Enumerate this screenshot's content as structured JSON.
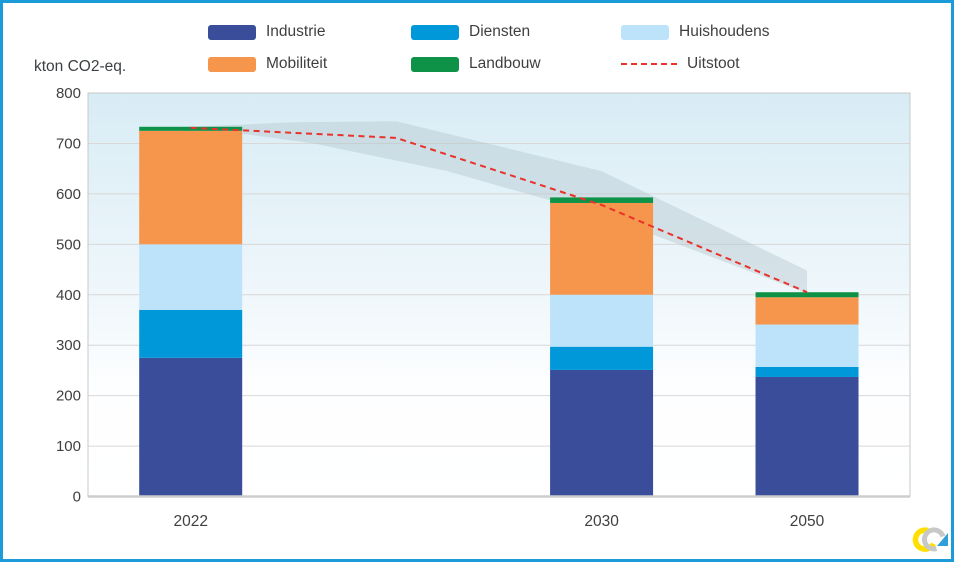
{
  "window": {
    "border_color": "#1B9CD8"
  },
  "axis_title": "kton CO2-eq.",
  "legend": {
    "items": [
      {
        "label": "Industrie",
        "color": "#394D9B",
        "type": "swatch"
      },
      {
        "label": "Diensten",
        "color": "#0098D8",
        "type": "swatch"
      },
      {
        "label": "Huishoudens",
        "color": "#BDE3FB",
        "type": "swatch"
      },
      {
        "label": "Mobiliteit",
        "color": "#F6954C",
        "type": "swatch"
      },
      {
        "label": "Landbouw",
        "color": "#0E9247",
        "type": "swatch"
      },
      {
        "label": "Uitstoot",
        "color": "#E8322A",
        "type": "dashed-line"
      }
    ]
  },
  "chart_data": {
    "type": "bar",
    "subtype": "stacked-bars-with-dashed-line-and-uncertainty-band",
    "title": "",
    "ylabel": "kton CO2-eq.",
    "xlabel": "",
    "ylim": [
      0,
      800
    ],
    "yticks": [
      0,
      100,
      200,
      300,
      400,
      500,
      600,
      700,
      800
    ],
    "grid": true,
    "legend_position": "top",
    "categories": [
      "2022",
      "2030",
      "2050"
    ],
    "series": [
      {
        "name": "Industrie",
        "color": "#394D9B",
        "values": [
          275,
          251,
          237
        ]
      },
      {
        "name": "Diensten",
        "color": "#0098D8",
        "values": [
          95,
          46,
          20
        ]
      },
      {
        "name": "Huishoudens",
        "color": "#BDE3FB",
        "values": [
          130,
          103,
          84
        ]
      },
      {
        "name": "Mobiliteit",
        "color": "#F6954C",
        "values": [
          225,
          182,
          54
        ]
      },
      {
        "name": "Landbouw",
        "color": "#0E9247",
        "values": [
          8,
          11,
          10
        ]
      }
    ],
    "totals": [
      733,
      593,
      405
    ],
    "line": {
      "name": "Uitstoot",
      "color": "#E8322A",
      "style": "dashed",
      "points": [
        {
          "year": "2022",
          "value": 731
        },
        {
          "year": "2026",
          "value": 711
        },
        {
          "year": "2030",
          "value": 578
        },
        {
          "year": "2050",
          "value": 405
        }
      ]
    },
    "band": {
      "color": "#AEBFC9",
      "opacity": 0.38,
      "upper": [
        {
          "xi": 0,
          "value": 733
        },
        {
          "xi": 1,
          "value": 742
        },
        {
          "xi": 2,
          "value": 744
        },
        {
          "xi": 4,
          "value": 645
        },
        {
          "xi": 6,
          "value": 448
        }
      ],
      "lower": [
        {
          "xi": 0,
          "value": 733
        },
        {
          "xi": 1.2,
          "value": 700
        },
        {
          "xi": 2.5,
          "value": 645
        },
        {
          "xi": 4,
          "value": 558
        },
        {
          "xi": 6,
          "value": 403
        }
      ]
    }
  },
  "logo": {
    "name": "vlaanderen-logo",
    "yellow": "#FFDE00",
    "gray": "#C8C9C7",
    "blue": "#2E9FD9"
  }
}
